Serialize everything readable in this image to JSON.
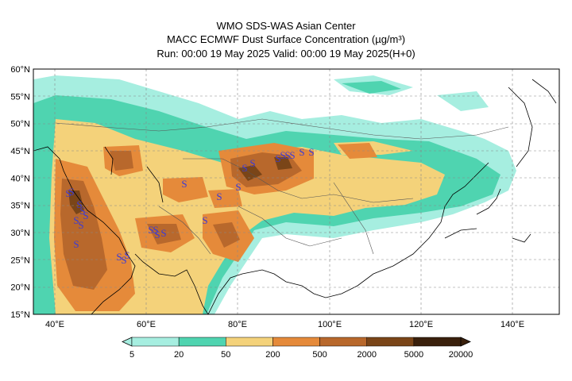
{
  "header": {
    "title_line1": "WMO SDS-WAS Asian Center",
    "title_line2": "MACC ECMWF Dust Surface Concentration (µg/m³)",
    "title_line3": "Run: 00:00 19 May 2025    Valid: 00:00 19 May 2025(H+0)"
  },
  "map": {
    "lon_range": [
      35,
      150
    ],
    "lat_range": [
      15,
      60
    ],
    "lat_ticks": [
      "15°N",
      "20°N",
      "25°N",
      "30°N",
      "35°N",
      "40°N",
      "45°N",
      "50°N",
      "55°N",
      "60°N"
    ],
    "lon_ticks": [
      "40°E",
      "60°E",
      "80°E",
      "100°E",
      "120°E",
      "140°E"
    ],
    "grid": "dashed",
    "dust_symbol": "S",
    "dust_symbol_color": "#3b3bd6",
    "dust_symbol_count": 27
  },
  "colorbar": {
    "thresholds": [
      "5",
      "20",
      "50",
      "200",
      "500",
      "2000",
      "5000",
      "20000"
    ],
    "colors": [
      "#a6eee0",
      "#4fd4b0",
      "#f4d27a",
      "#e58a3a",
      "#b8682c",
      "#7a4518",
      "#3a200c"
    ]
  }
}
